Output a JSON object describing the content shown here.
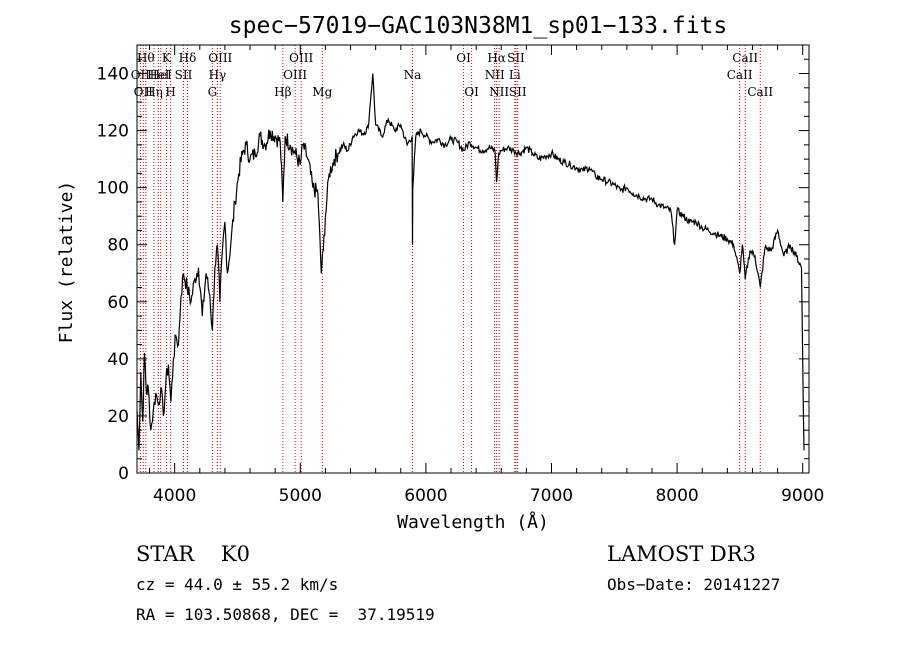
{
  "chart_data": {
    "type": "line",
    "title": "spec−57019−GAC103N38M1_sp01−133.fits",
    "xlabel": "Wavelength (Å)",
    "ylabel": "Flux (relative)",
    "xlim": [
      3700,
      9050
    ],
    "ylim": [
      0,
      150
    ],
    "xticks": [
      4000,
      5000,
      6000,
      7000,
      8000,
      9000
    ],
    "xtick_labels": [
      "4000",
      "5000",
      "6000",
      "7000",
      "8000",
      "9000"
    ],
    "yticks": [
      0,
      20,
      40,
      60,
      80,
      100,
      120,
      140
    ],
    "ytick_labels": [
      "0",
      "20",
      "40",
      "60",
      "80",
      "100",
      "120",
      "140"
    ],
    "grid": false,
    "line_color": "#000000",
    "marker_line_color": "#cc0000",
    "series": [
      {
        "x": [
          3700,
          3715,
          3730,
          3745,
          3760,
          3775,
          3790,
          3810,
          3830,
          3850,
          3870,
          3890,
          3910,
          3930,
          3950,
          3970,
          3990,
          4010,
          4030,
          4050,
          4070,
          4100,
          4130,
          4160,
          4190,
          4220,
          4250,
          4280,
          4300,
          4320,
          4340,
          4360,
          4380,
          4400,
          4420,
          4450,
          4480,
          4510,
          4540,
          4570,
          4600,
          4640,
          4680,
          4720,
          4760,
          4800,
          4840,
          4861,
          4880,
          4920,
          4960,
          5000,
          5020,
          5060,
          5100,
          5140,
          5167,
          5183,
          5200,
          5230,
          5270,
          5300,
          5340,
          5380,
          5420,
          5460,
          5500,
          5540,
          5577,
          5600,
          5650,
          5700,
          5750,
          5800,
          5850,
          5890,
          5893,
          5896,
          5920,
          5960,
          6000,
          6050,
          6100,
          6150,
          6200,
          6250,
          6300,
          6350,
          6400,
          6450,
          6500,
          6550,
          6563,
          6580,
          6600,
          6650,
          6700,
          6750,
          6800,
          6850,
          6900,
          6950,
          7000,
          7050,
          7100,
          7150,
          7200,
          7250,
          7300,
          7350,
          7400,
          7450,
          7500,
          7550,
          7600,
          7650,
          7700,
          7750,
          7800,
          7850,
          7900,
          7950,
          7980,
          8000,
          8050,
          8100,
          8150,
          8200,
          8250,
          8300,
          8350,
          8400,
          8450,
          8498,
          8520,
          8542,
          8580,
          8620,
          8662,
          8700,
          8750,
          8800,
          8850,
          8900,
          8950,
          8990,
          9000,
          9010
        ],
        "y": [
          22,
          8,
          35,
          18,
          42,
          28,
          30,
          15,
          22,
          28,
          24,
          30,
          20,
          32,
          38,
          25,
          40,
          48,
          45,
          62,
          70,
          65,
          60,
          68,
          72,
          55,
          70,
          62,
          50,
          72,
          80,
          60,
          78,
          88,
          70,
          82,
          95,
          105,
          112,
          115,
          110,
          112,
          118,
          115,
          120,
          118,
          116,
          95,
          118,
          115,
          112,
          108,
          115,
          110,
          100,
          98,
          70,
          78,
          90,
          105,
          110,
          112,
          115,
          113,
          118,
          120,
          119,
          121,
          140,
          122,
          118,
          124,
          120,
          122,
          115,
          118,
          80,
          100,
          118,
          120,
          118,
          116,
          117,
          115,
          117,
          116,
          113,
          116,
          114,
          113,
          114,
          113,
          102,
          112,
          113,
          114,
          113,
          112,
          114,
          112,
          110,
          111,
          112,
          110,
          109,
          108,
          107,
          106,
          107,
          104,
          103,
          102,
          101,
          99,
          100,
          98,
          97,
          96,
          96,
          94,
          93,
          92,
          80,
          92,
          90,
          88,
          88,
          86,
          85,
          84,
          83,
          82,
          80,
          70,
          80,
          68,
          78,
          76,
          65,
          79,
          78,
          85,
          76,
          80,
          76,
          72,
          40,
          8
        ]
      }
    ],
    "line_markers": [
      {
        "wavelength": 3727,
        "label": "OII",
        "row": 2
      },
      {
        "wavelength": 3750,
        "label": "OII",
        "row": 3
      },
      {
        "wavelength": 3770,
        "label": "Hθ",
        "row": 1
      },
      {
        "wavelength": 3835,
        "label": "Hη",
        "row": 3
      },
      {
        "wavelength": 3870,
        "label": "HeI",
        "row": 2
      },
      {
        "wavelength": 3889,
        "label": "HeI",
        "row": 2
      },
      {
        "wavelength": 3934,
        "label": "K",
        "row": 1
      },
      {
        "wavelength": 3968,
        "label": "H",
        "row": 3
      },
      {
        "wavelength": 4070,
        "label": "SII",
        "row": 2
      },
      {
        "wavelength": 4102,
        "label": "Hδ",
        "row": 1
      },
      {
        "wavelength": 4300,
        "label": "G",
        "row": 3
      },
      {
        "wavelength": 4340,
        "label": "Hγ",
        "row": 2
      },
      {
        "wavelength": 4363,
        "label": "OIII",
        "row": 1
      },
      {
        "wavelength": 4861,
        "label": "Hβ",
        "row": 3
      },
      {
        "wavelength": 4959,
        "label": "OIII",
        "row": 2
      },
      {
        "wavelength": 5007,
        "label": "OIII",
        "row": 1
      },
      {
        "wavelength": 5175,
        "label": "Mg",
        "row": 3
      },
      {
        "wavelength": 5893,
        "label": "Na",
        "row": 2
      },
      {
        "wavelength": 6300,
        "label": "OI",
        "row": 1
      },
      {
        "wavelength": 6364,
        "label": "OI",
        "row": 3
      },
      {
        "wavelength": 6548,
        "label": "NII",
        "row": 2
      },
      {
        "wavelength": 6563,
        "label": "Hα",
        "row": 1
      },
      {
        "wavelength": 6583,
        "label": "NII",
        "row": 3
      },
      {
        "wavelength": 6708,
        "label": "Li",
        "row": 2
      },
      {
        "wavelength": 6717,
        "label": "SII",
        "row": 1
      },
      {
        "wavelength": 6731,
        "label": "SII",
        "row": 3
      },
      {
        "wavelength": 8498,
        "label": "CaII",
        "row": 2
      },
      {
        "wavelength": 8542,
        "label": "CaII",
        "row": 1
      },
      {
        "wavelength": 8662,
        "label": "CaII",
        "row": 3
      }
    ]
  },
  "info": {
    "classification": "STAR    K0",
    "survey": "LAMOST DR3",
    "cz": "cz = 44.0 ± 55.2 km/s",
    "obs_date": "Obs−Date: 20141227",
    "coords": "RA = 103.50868, DEC =  37.19519"
  }
}
